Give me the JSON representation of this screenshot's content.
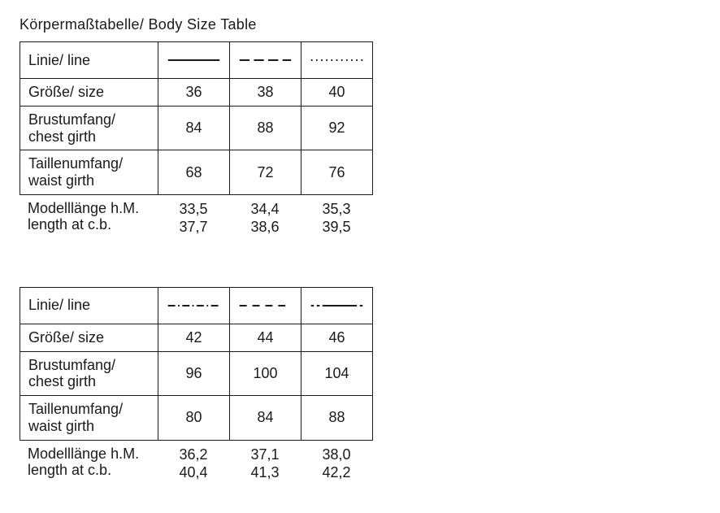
{
  "title": "Körpermaßtabelle/ Body Size Table",
  "row_labels": {
    "line": "Linie/ line",
    "size": "Größe/ size",
    "chest": "Brustumfang/\nchest girth",
    "waist": "Taillenumfang/\nwaist girth",
    "model1": "Modelllänge h.M.",
    "model2": "length at c.b."
  },
  "tables": [
    {
      "line_patterns": [
        "solid",
        "dash-long",
        "dot"
      ],
      "size": [
        "36",
        "38",
        "40"
      ],
      "chest": [
        "84",
        "88",
        "92"
      ],
      "waist": [
        "68",
        "72",
        "76"
      ],
      "model_row1": [
        "33,5",
        "34,4",
        "35,3"
      ],
      "model_row2": [
        "37,7",
        "38,6",
        "39,5"
      ]
    },
    {
      "line_patterns": [
        "dash-dot",
        "dash-space",
        "dot-solid-dot"
      ],
      "size": [
        "42",
        "44",
        "46"
      ],
      "chest": [
        "96",
        "100",
        "104"
      ],
      "waist": [
        "80",
        "84",
        "88"
      ],
      "model_row1": [
        "36,2",
        "37,1",
        "38,0"
      ],
      "model_row2": [
        "40,4",
        "41,3",
        "42,2"
      ]
    }
  ],
  "style": {
    "stroke": "#1a1a1a",
    "stroke_width": 2,
    "patterns": {
      "solid": {
        "type": "line",
        "dash": ""
      },
      "dash-long": {
        "type": "line",
        "dash": "14 6"
      },
      "dot": {
        "type": "line",
        "dash": "2 5"
      },
      "dash-dot": {
        "type": "line",
        "dash": "10 4 2 4"
      },
      "dash-space": {
        "type": "line",
        "dash": "10 8"
      },
      "dot-solid-dot": {
        "type": "composite"
      }
    }
  }
}
